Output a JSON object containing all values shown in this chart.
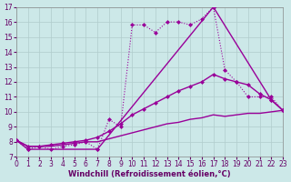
{
  "background_color": "#cce8e8",
  "line_color": "#990099",
  "grid_color": "#b0cccc",
  "xlabel": "Windchill (Refroidissement éolien,°C)",
  "xlabel_color": "#660066",
  "tick_color": "#660066",
  "ylim": [
    7,
    17
  ],
  "xlim": [
    0,
    23
  ],
  "lines": [
    {
      "x": [
        0,
        1,
        2,
        3,
        4,
        5,
        6,
        7,
        8,
        9,
        10,
        11,
        12,
        13,
        14,
        15,
        16,
        17,
        18,
        19,
        20,
        21,
        22,
        23
      ],
      "y": [
        8.1,
        7.5,
        7.7,
        7.5,
        7.7,
        7.8,
        8.0,
        7.5,
        9.5,
        9.0,
        15.8,
        15.8,
        15.3,
        16.0,
        16.0,
        15.8,
        16.2,
        17.0,
        12.8,
        12.0,
        11.0,
        11.0,
        11.0,
        10.1
      ],
      "linestyle": "dotted",
      "linewidth": 0.8,
      "marker": "D",
      "markersize": 2.5,
      "markevery": 1
    },
    {
      "x": [
        0,
        1,
        7,
        17,
        22,
        23
      ],
      "y": [
        8.1,
        7.5,
        7.5,
        17.0,
        10.8,
        10.1
      ],
      "linestyle": "solid",
      "linewidth": 1.0,
      "marker": "D",
      "markersize": 2.5,
      "markevery": 1
    },
    {
      "x": [
        0,
        1,
        2,
        3,
        4,
        5,
        6,
        7,
        8,
        9,
        10,
        11,
        12,
        13,
        14,
        15,
        16,
        17,
        18,
        19,
        20,
        21,
        22,
        23
      ],
      "y": [
        8.1,
        7.7,
        7.7,
        7.8,
        7.9,
        8.0,
        8.1,
        8.3,
        8.7,
        9.2,
        9.8,
        10.2,
        10.6,
        11.0,
        11.4,
        11.7,
        12.0,
        12.5,
        12.2,
        12.0,
        11.8,
        11.2,
        10.8,
        10.1
      ],
      "linestyle": "solid",
      "linewidth": 1.0,
      "marker": "D",
      "markersize": 2.5,
      "markevery": 1
    },
    {
      "x": [
        0,
        1,
        2,
        3,
        4,
        5,
        6,
        7,
        8,
        9,
        10,
        11,
        12,
        13,
        14,
        15,
        16,
        17,
        18,
        19,
        20,
        21,
        22,
        23
      ],
      "y": [
        8.1,
        7.7,
        7.7,
        7.7,
        7.8,
        7.9,
        8.0,
        8.0,
        8.2,
        8.4,
        8.6,
        8.8,
        9.0,
        9.2,
        9.3,
        9.5,
        9.6,
        9.8,
        9.7,
        9.8,
        9.9,
        9.9,
        10.0,
        10.1
      ],
      "linestyle": "solid",
      "linewidth": 1.0,
      "marker": null,
      "markersize": 0,
      "markevery": 1
    }
  ]
}
